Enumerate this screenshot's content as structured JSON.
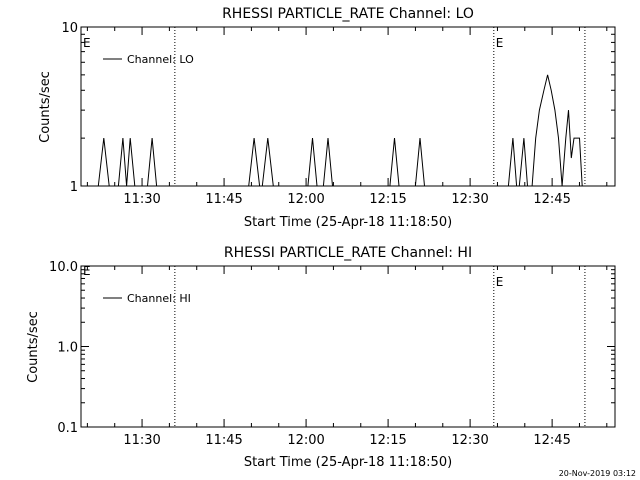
{
  "chart_data": [
    {
      "type": "line",
      "title": "RHESSI PARTICLE_RATE Channel: LO",
      "xlabel": "Start Time (25-Apr-18 11:18:50)",
      "ylabel": "Counts/sec",
      "y_scale": "log",
      "ylim": [
        1,
        10
      ],
      "y_ticks": [
        1,
        10
      ],
      "y_tick_labels": [
        "1",
        "10"
      ],
      "x_range_minutes": [
        "11:18:50",
        "12:56:30"
      ],
      "x_ticks": [
        "11:30",
        "11:45",
        "12:00",
        "12:15",
        "12:30",
        "12:45"
      ],
      "legend": {
        "position": "top-left",
        "entries": [
          "Channel: LO"
        ]
      },
      "vlines": [
        {
          "time": "11:36:00",
          "label": ""
        },
        {
          "time": "12:34:20",
          "label": "E"
        },
        {
          "time": "12:51:00",
          "label": ""
        }
      ],
      "corner_label": "E",
      "series": [
        {
          "name": "Channel: LO",
          "points": [
            [
              "11:22:00",
              1
            ],
            [
              "11:23:00",
              2
            ],
            [
              "11:24:00",
              1
            ],
            [
              "11:25:40",
              1
            ],
            [
              "11:26:30",
              2
            ],
            [
              "11:27:10",
              1
            ],
            [
              "11:27:50",
              2
            ],
            [
              "11:28:40",
              1
            ],
            [
              "11:31:00",
              1
            ],
            [
              "11:31:50",
              2
            ],
            [
              "11:32:40",
              1
            ],
            [
              "11:49:30",
              1
            ],
            [
              "11:50:30",
              2
            ],
            [
              "11:51:30",
              1
            ],
            [
              "11:52:00",
              1
            ],
            [
              "11:53:00",
              2
            ],
            [
              "11:54:00",
              1
            ],
            [
              "12:00:20",
              1
            ],
            [
              "12:01:10",
              2
            ],
            [
              "12:02:00",
              1
            ],
            [
              "12:03:10",
              1
            ],
            [
              "12:04:00",
              2
            ],
            [
              "12:04:50",
              1
            ],
            [
              "12:15:20",
              1
            ],
            [
              "12:16:10",
              2
            ],
            [
              "12:17:00",
              1
            ],
            [
              "12:20:00",
              1
            ],
            [
              "12:20:50",
              2
            ],
            [
              "12:21:40",
              1
            ],
            [
              "12:37:00",
              1
            ],
            [
              "12:37:50",
              2
            ],
            [
              "12:38:30",
              1
            ],
            [
              "12:39:00",
              1
            ],
            [
              "12:39:50",
              2
            ],
            [
              "12:40:30",
              1
            ],
            [
              "12:41:20",
              1
            ],
            [
              "12:42:00",
              2
            ],
            [
              "12:42:40",
              3
            ],
            [
              "12:43:30",
              4
            ],
            [
              "12:44:10",
              5
            ],
            [
              "12:44:50",
              4
            ],
            [
              "12:45:30",
              3
            ],
            [
              "12:46:10",
              2
            ],
            [
              "12:46:50",
              1
            ],
            [
              "12:47:30",
              2
            ],
            [
              "12:48:00",
              3
            ],
            [
              "12:48:30",
              1.5
            ],
            [
              "12:49:00",
              2
            ],
            [
              "12:50:00",
              2
            ],
            [
              "12:50:30",
              1
            ]
          ]
        }
      ]
    },
    {
      "type": "line",
      "title": "RHESSI PARTICLE_RATE Channel: HI",
      "xlabel": "Start Time (25-Apr-18 11:18:50)",
      "ylabel": "Counts/sec",
      "y_scale": "log",
      "ylim": [
        0.1,
        10
      ],
      "y_ticks": [
        0.1,
        1,
        10
      ],
      "y_tick_labels": [
        "0.1",
        "1.0",
        "10.0"
      ],
      "x_range_minutes": [
        "11:18:50",
        "12:56:30"
      ],
      "x_ticks": [
        "11:30",
        "11:45",
        "12:00",
        "12:15",
        "12:30",
        "12:45"
      ],
      "legend": {
        "position": "top-left",
        "entries": [
          "Channel: HI"
        ]
      },
      "vlines": [
        {
          "time": "11:36:00",
          "label": ""
        },
        {
          "time": "12:34:20",
          "label": "E"
        },
        {
          "time": "12:51:00",
          "label": ""
        }
      ],
      "corner_label": "E",
      "series": [
        {
          "name": "Channel: HI",
          "points": []
        }
      ]
    }
  ],
  "footer": {
    "timestamp": "20-Nov-2019 03:12"
  }
}
